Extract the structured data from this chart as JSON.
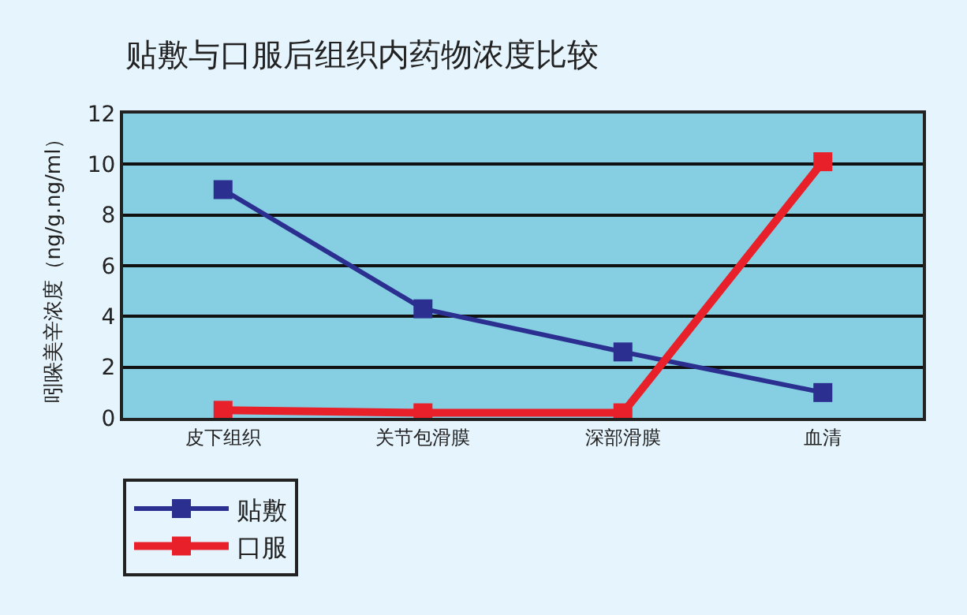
{
  "chart_data": {
    "type": "line",
    "title": "贴敷与口服后组织内药物浓度比较",
    "ylabel": "吲哚美辛浓度（ng/g.ng/ml）",
    "categories": [
      "皮下组织",
      "关节包滑膜",
      "深部滑膜",
      "血清"
    ],
    "series": [
      {
        "name": "贴敷",
        "color": "#2b2f8f",
        "values": [
          9.0,
          4.3,
          2.6,
          1.0
        ]
      },
      {
        "name": "口服",
        "color": "#e8202a",
        "values": [
          0.3,
          0.2,
          0.2,
          10.1
        ]
      }
    ],
    "ylim": [
      0,
      12
    ],
    "yticks": [
      0,
      2,
      4,
      6,
      8,
      10,
      12
    ],
    "grid": "y",
    "legend": "bottom left",
    "marker": "square",
    "line_style": "solid"
  }
}
